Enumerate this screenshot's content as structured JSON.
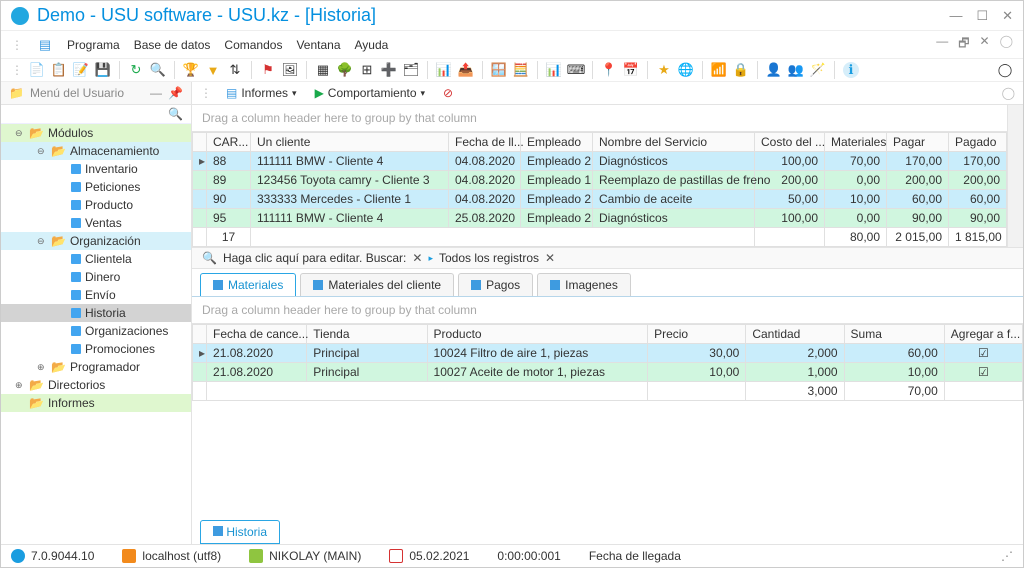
{
  "title": "Demo - USU software - USU.kz - [Historia]",
  "menu": [
    "Programa",
    "Base de datos",
    "Comandos",
    "Ventana",
    "Ayuda"
  ],
  "sidebar": {
    "header": "Menú del Usuario",
    "items": [
      {
        "l": 1,
        "exp": "−",
        "icon": "folder",
        "label": "Módulos",
        "hl": "yellow"
      },
      {
        "l": 2,
        "exp": "−",
        "icon": "folder",
        "label": "Almacenamiento",
        "hl": "blue"
      },
      {
        "l": 3,
        "icon": "doc",
        "label": "Inventario"
      },
      {
        "l": 3,
        "icon": "doc",
        "label": "Peticiones"
      },
      {
        "l": 3,
        "icon": "doc",
        "label": "Producto"
      },
      {
        "l": 3,
        "icon": "doc",
        "label": "Ventas"
      },
      {
        "l": 2,
        "exp": "−",
        "icon": "folder",
        "label": "Organización",
        "hl": "blue"
      },
      {
        "l": 3,
        "icon": "doc",
        "label": "Clientela"
      },
      {
        "l": 3,
        "icon": "doc",
        "label": "Dinero"
      },
      {
        "l": 3,
        "icon": "doc",
        "label": "Envío"
      },
      {
        "l": 3,
        "icon": "doc",
        "label": "Historia",
        "sel": true
      },
      {
        "l": 3,
        "icon": "doc",
        "label": "Organizaciones"
      },
      {
        "l": 3,
        "icon": "doc",
        "label": "Promociones"
      },
      {
        "l": 2,
        "exp": "+",
        "icon": "folder",
        "label": "Programador"
      },
      {
        "l": 1,
        "exp": "+",
        "icon": "folder",
        "label": "Directorios"
      },
      {
        "l": 1,
        "icon": "folder",
        "label": "Informes",
        "hl": "yellow"
      }
    ]
  },
  "mainToolbar": {
    "informes": "Informes",
    "comport": "Comportamiento"
  },
  "groupHint": "Drag a column header here to group by that column",
  "grid1": {
    "cols": [
      "CAR...",
      "Un cliente",
      "Fecha de ll...",
      "Empleado",
      "Nombre del Servicio",
      "Costo del ...",
      "Materiales",
      "Pagar",
      "Pagado"
    ],
    "colw": [
      "44px",
      "198px",
      "72px",
      "72px",
      "162px",
      "70px",
      "62px",
      "62px",
      "58px"
    ],
    "rows": [
      {
        "c": [
          "88",
          "111111 BMW - Cliente 4",
          "04.08.2020",
          "Empleado 2",
          "Diagnósticos",
          "100,00",
          "70,00",
          "170,00",
          "170,00"
        ],
        "cls": "blue",
        "ind": "▸"
      },
      {
        "c": [
          "89",
          "123456 Toyota camry - Cliente 3",
          "04.08.2020",
          "Empleado 1",
          "Reemplazo de pastillas de freno",
          "200,00",
          "0,00",
          "200,00",
          "200,00"
        ],
        "cls": "green"
      },
      {
        "c": [
          "90",
          "333333 Mercedes - Cliente 1",
          "04.08.2020",
          "Empleado 2",
          "Cambio de aceite",
          "50,00",
          "10,00",
          "60,00",
          "60,00"
        ],
        "cls": "blue"
      },
      {
        "c": [
          "95",
          "111111 BMW - Cliente 4",
          "25.08.2020",
          "Empleado 2",
          "Diagnósticos",
          "100,00",
          "0,00",
          "90,00",
          "90,00"
        ],
        "cls": "green"
      }
    ],
    "totals": {
      "count": "17",
      "mat": "80,00",
      "pagar": "2 015,00",
      "pagado": "1 815,00"
    }
  },
  "filter": {
    "edit": "Haga clic aquí para editar. Buscar:",
    "all": "Todos los registros"
  },
  "tabs": [
    "Materiales",
    "Materiales del cliente",
    "Pagos",
    "Imagenes"
  ],
  "grid2": {
    "cols": [
      "Fecha de cance...",
      "Tienda",
      "Producto",
      "Precio",
      "Cantidad",
      "Suma",
      "Agregar a f..."
    ],
    "colw": [
      "100px",
      "120px",
      "220px",
      "98px",
      "98px",
      "100px",
      "78px"
    ],
    "rows": [
      {
        "c": [
          "21.08.2020",
          "Principal",
          "10024 Filtro de aire 1, piezas",
          "30,00",
          "2,000",
          "60,00",
          "☑"
        ],
        "cls": "blue",
        "ind": "▸"
      },
      {
        "c": [
          "21.08.2020",
          "Principal",
          "10027 Aceite de motor 1, piezas",
          "10,00",
          "1,000",
          "10,00",
          "☑"
        ],
        "cls": "green"
      }
    ],
    "totals": {
      "cant": "3,000",
      "suma": "70,00"
    }
  },
  "footerTab": "Historia",
  "status": {
    "ver": "7.0.9044.10",
    "host": "localhost (utf8)",
    "user": "NIKOLAY (MAIN)",
    "date": "05.02.2021",
    "time": "0:00:00:001",
    "field": "Fecha de llegada"
  }
}
